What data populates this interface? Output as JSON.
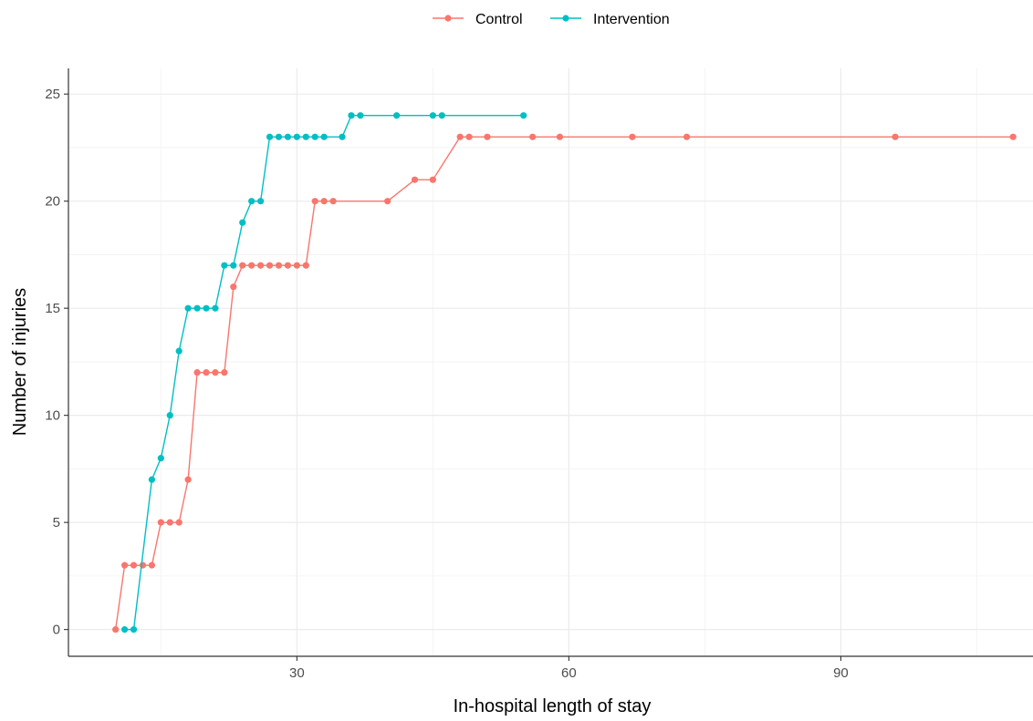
{
  "chart_data": {
    "type": "line",
    "title": "",
    "xlabel": "In-hospital length of stay",
    "ylabel": "Number of injuries",
    "xlim": [
      4.8,
      111.6
    ],
    "ylim": [
      -1.25,
      26.2
    ],
    "x_ticks": [
      30,
      60,
      90
    ],
    "y_ticks": [
      0,
      5,
      10,
      15,
      20,
      25
    ],
    "grid": true,
    "legend_position": "top",
    "series": [
      {
        "name": "Control",
        "color": "#F8766D",
        "points": [
          [
            10,
            0
          ],
          [
            11,
            3
          ],
          [
            12,
            3
          ],
          [
            13,
            3
          ],
          [
            14,
            3
          ],
          [
            15,
            5
          ],
          [
            16,
            5
          ],
          [
            17,
            5
          ],
          [
            18,
            7
          ],
          [
            19,
            12
          ],
          [
            20,
            12
          ],
          [
            21,
            12
          ],
          [
            22,
            12
          ],
          [
            23,
            16
          ],
          [
            24,
            17
          ],
          [
            25,
            17
          ],
          [
            26,
            17
          ],
          [
            27,
            17
          ],
          [
            28,
            17
          ],
          [
            29,
            17
          ],
          [
            30,
            17
          ],
          [
            31,
            17
          ],
          [
            32,
            20
          ],
          [
            33,
            20
          ],
          [
            34,
            20
          ],
          [
            40,
            20
          ],
          [
            43,
            21
          ],
          [
            45,
            21
          ],
          [
            48,
            23
          ],
          [
            49,
            23
          ],
          [
            51,
            23
          ],
          [
            56,
            23
          ],
          [
            59,
            23
          ],
          [
            67,
            23
          ],
          [
            73,
            23
          ],
          [
            96,
            23
          ],
          [
            109,
            23
          ]
        ]
      },
      {
        "name": "Intervention",
        "color": "#00BFC4",
        "points": [
          [
            11,
            0
          ],
          [
            12,
            0
          ],
          [
            14,
            7
          ],
          [
            15,
            8
          ],
          [
            16,
            10
          ],
          [
            17,
            13
          ],
          [
            18,
            15
          ],
          [
            19,
            15
          ],
          [
            20,
            15
          ],
          [
            21,
            15
          ],
          [
            22,
            17
          ],
          [
            23,
            17
          ],
          [
            24,
            19
          ],
          [
            25,
            20
          ],
          [
            26,
            20
          ],
          [
            27,
            23
          ],
          [
            28,
            23
          ],
          [
            29,
            23
          ],
          [
            30,
            23
          ],
          [
            31,
            23
          ],
          [
            32,
            23
          ],
          [
            33,
            23
          ],
          [
            35,
            23
          ],
          [
            36,
            24
          ],
          [
            37,
            24
          ],
          [
            41,
            24
          ],
          [
            45,
            24
          ],
          [
            46,
            24
          ],
          [
            55,
            24
          ]
        ]
      }
    ]
  }
}
